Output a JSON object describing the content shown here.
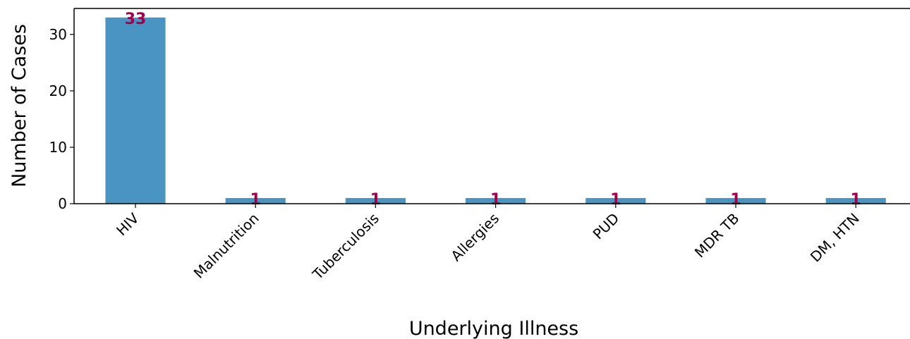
{
  "chart_data": {
    "type": "bar",
    "x_label": "Underlying Illness",
    "y_label": "Number of Cases",
    "categories": [
      "HIV",
      "Malnutrition",
      "Tuberculosis",
      "Allergies",
      "PUD",
      "MDR TB",
      "DM, HTN"
    ],
    "values": [
      33,
      1,
      1,
      1,
      1,
      1,
      1
    ],
    "color": "#4a94c4",
    "label_color": "#a0004a",
    "ylim": [
      0,
      34.6
    ],
    "yticks": [
      0,
      10,
      20,
      30
    ],
    "grid": false
  }
}
